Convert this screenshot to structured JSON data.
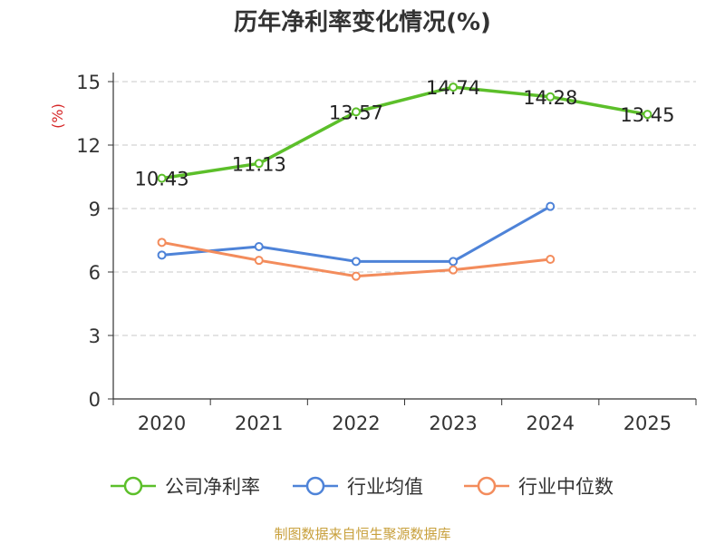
{
  "chart_data": {
    "type": "line",
    "title": "历年净利率变化情况(%)",
    "ylabel": "(%)",
    "xlabel": "",
    "categories": [
      "2020",
      "2021",
      "2022",
      "2023",
      "2024",
      "2025"
    ],
    "ylim": [
      0,
      15
    ],
    "yticks": [
      0,
      3,
      6,
      9,
      12,
      15
    ],
    "grid": true,
    "legend_position": "bottom",
    "series": [
      {
        "name": "公司净利率",
        "color": "#5cbf2a",
        "values": [
          10.43,
          11.13,
          13.57,
          14.74,
          14.28,
          13.45
        ],
        "labels": [
          "10.43",
          "11.13",
          "13.57",
          "14.74",
          "14.28",
          "13.45"
        ]
      },
      {
        "name": "行业均值",
        "color": "#4e83d8",
        "values": [
          6.8,
          7.2,
          6.5,
          6.5,
          9.1,
          null
        ]
      },
      {
        "name": "行业中位数",
        "color": "#f38c5c",
        "values": [
          7.4,
          6.55,
          5.8,
          6.1,
          6.6,
          null
        ]
      }
    ]
  },
  "source": "制图数据来自恒生聚源数据库"
}
